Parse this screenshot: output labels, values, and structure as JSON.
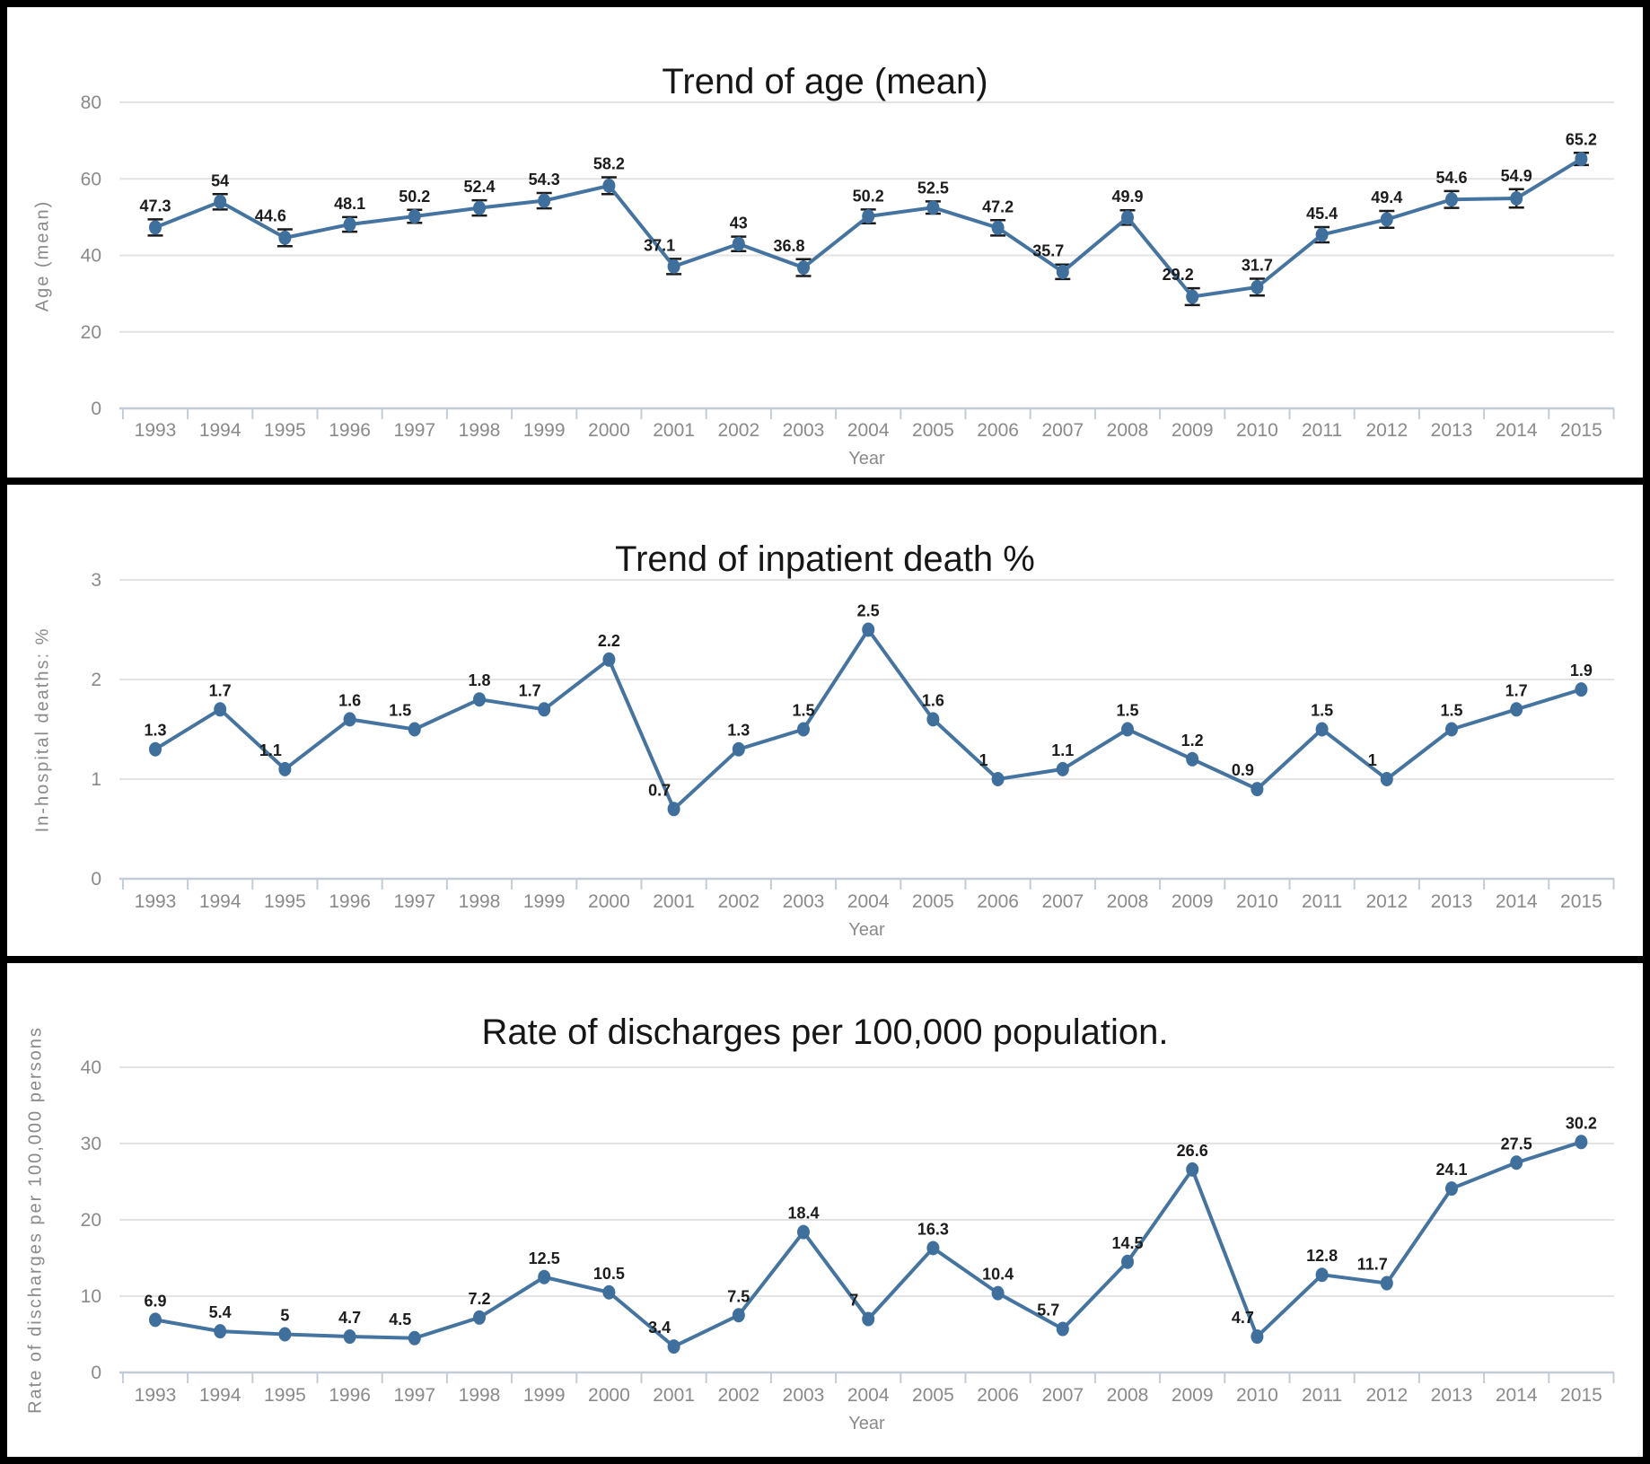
{
  "colors": {
    "line": "#44749f",
    "marker": "#3f6f9d",
    "error_bar": "#1a1a1a",
    "grid": "#e3e3e3",
    "axis": "#c3ccd6",
    "tick_text": "#8a8a8a",
    "value_label": "#1c1c1c",
    "title_text": "#161616",
    "panel_background": "#ffffff",
    "frame": "#000000"
  },
  "chart_data": [
    {
      "type": "line",
      "title": "Trend of age (mean)",
      "xlabel": "Year",
      "ylabel": "Age (mean)",
      "legend": null,
      "grid": true,
      "x": [
        1993,
        1994,
        1995,
        1996,
        1997,
        1998,
        1999,
        2000,
        2001,
        2002,
        2003,
        2004,
        2005,
        2006,
        2007,
        2008,
        2009,
        2010,
        2011,
        2012,
        2013,
        2014,
        2015
      ],
      "values": [
        47.3,
        54,
        44.6,
        48.1,
        50.2,
        52.4,
        54.3,
        58.2,
        37.1,
        43,
        36.8,
        50.2,
        52.5,
        47.2,
        35.7,
        49.9,
        29.2,
        31.7,
        45.4,
        49.4,
        54.6,
        54.9,
        65.2
      ],
      "errors": [
        2.1,
        2,
        2.2,
        1.9,
        1.7,
        2,
        2,
        2.2,
        2,
        1.9,
        2.2,
        1.8,
        1.6,
        2,
        1.9,
        1.9,
        2.2,
        2.2,
        2,
        2.2,
        2.2,
        2.4,
        1.6
      ],
      "yticks": [
        0,
        20,
        40,
        60,
        80
      ],
      "ylim": [
        0,
        86
      ]
    },
    {
      "type": "line",
      "title": "Trend of inpatient death %",
      "xlabel": "Year",
      "ylabel": "In-hospital deaths: %",
      "legend": null,
      "grid": true,
      "x": [
        1993,
        1994,
        1995,
        1996,
        1997,
        1998,
        1999,
        2000,
        2001,
        2002,
        2003,
        2004,
        2005,
        2006,
        2007,
        2008,
        2009,
        2010,
        2011,
        2012,
        2013,
        2014,
        2015
      ],
      "values": [
        1.3,
        1.7,
        1.1,
        1.6,
        1.5,
        1.8,
        1.7,
        2.2,
        0.7,
        1.3,
        1.5,
        2.5,
        1.6,
        1,
        1.1,
        1.5,
        1.2,
        0.9,
        1.5,
        1,
        1.5,
        1.7,
        1.9
      ],
      "errors": null,
      "yticks": [
        0,
        1,
        2,
        3
      ],
      "ylim": [
        0,
        3.2
      ]
    },
    {
      "type": "line",
      "title": "Rate of discharges per 100,000 population.",
      "xlabel": "Year",
      "ylabel": "Rate of discharges per 100,000 persons",
      "legend": null,
      "grid": true,
      "x": [
        1993,
        1994,
        1995,
        1996,
        1997,
        1998,
        1999,
        2000,
        2001,
        2002,
        2003,
        2004,
        2005,
        2006,
        2007,
        2008,
        2009,
        2010,
        2011,
        2012,
        2013,
        2014,
        2015
      ],
      "values": [
        6.9,
        5.4,
        5,
        4.7,
        4.5,
        7.2,
        12.5,
        10.5,
        3.4,
        7.5,
        18.4,
        7,
        16.3,
        10.4,
        5.7,
        14.5,
        26.6,
        4.7,
        12.8,
        11.7,
        24.1,
        27.5,
        30.2
      ],
      "errors": null,
      "yticks": [
        0,
        10,
        20,
        30,
        40
      ],
      "ylim": [
        0,
        43
      ]
    }
  ]
}
